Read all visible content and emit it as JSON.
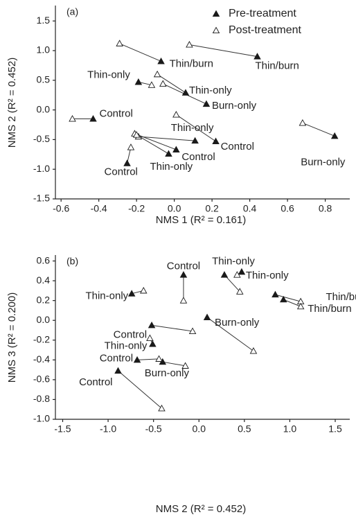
{
  "chart_data": [
    {
      "type": "scatter",
      "panel_label": "(a)",
      "legend": "upper right",
      "x_label": "NMS 1 (R² = 0.161)",
      "y_label": "NMS 2 (R² = 0.452)",
      "xlim": [
        -0.63,
        0.93
      ],
      "ylim": [
        -1.5,
        1.76
      ],
      "xticks": [
        -0.6,
        -0.4,
        -0.2,
        {
          "value": 0,
          "label": "0.0"
        },
        0.2,
        0.4,
        0.6,
        0.8
      ],
      "yticks": [
        -1.5,
        {
          "value": -1,
          "label": "-1.0"
        },
        -0.5,
        {
          "value": 0,
          "label": "0.0"
        },
        0.5,
        {
          "value": 1,
          "label": "1.0"
        },
        1.5
      ],
      "point_labels": [
        "Thin/burn",
        "Thin/burn",
        "Thin-only",
        "Thin-only",
        "Burn-only",
        "Control",
        "Thin-only",
        "Control",
        "Control",
        "Thin-only",
        "Control",
        "Burn-only"
      ],
      "series": [
        {
          "name": "Pre-treatment",
          "color": "#1a1a1a",
          "filled": true,
          "x": [
            -0.07,
            0.44,
            -0.19,
            0.06,
            0.17,
            -0.43,
            0.11,
            0.22,
            0.01,
            -0.03,
            -0.25,
            0.85
          ],
          "values": [
            0.82,
            0.9,
            0.47,
            0.29,
            0.1,
            -0.15,
            -0.52,
            -0.53,
            -0.67,
            -0.74,
            -0.9,
            -0.44
          ]
        },
        {
          "name": "Post-treatment",
          "color": "#1a1a1a",
          "filled": false,
          "x": [
            -0.29,
            0.08,
            -0.12,
            -0.09,
            -0.06,
            -0.54,
            -0.19,
            0.01,
            -0.21,
            -0.2,
            -0.23,
            0.68
          ],
          "values": [
            1.12,
            1.1,
            0.42,
            0.6,
            0.44,
            -0.15,
            -0.45,
            -0.08,
            -0.4,
            -0.42,
            -0.63,
            -0.22
          ]
        }
      ]
    },
    {
      "type": "scatter",
      "panel_label": "(b)",
      "x_label": "NMS 2 (R² = 0.452)",
      "y_label": "NMS 3 (R² = 0.200)",
      "xlim": [
        -1.58,
        1.66
      ],
      "ylim": [
        -1.0,
        0.66
      ],
      "xticks": [
        -1.5,
        {
          "value": -1,
          "label": "-1.0"
        },
        -0.5,
        {
          "value": 0,
          "label": "0.0"
        },
        0.5,
        {
          "value": 1,
          "label": "1.0"
        },
        1.5
      ],
      "yticks": [
        {
          "value": -1,
          "label": "-1.0"
        },
        -0.8,
        -0.6,
        -0.4,
        -0.2,
        {
          "value": 0,
          "label": "0.0"
        },
        0.2,
        0.4,
        0.6
      ],
      "point_labels": [
        "Thin-only",
        "Control",
        "Thin-only",
        "Thin-only",
        "Thin/burn",
        "Thin/burn",
        "Burn-only",
        "Control",
        "Thin-only",
        "Control",
        "Burn-only",
        "Control"
      ],
      "series": [
        {
          "color": "#1a1a1a",
          "filled": true,
          "x": [
            -0.74,
            -0.17,
            0.28,
            0.47,
            0.84,
            0.93,
            0.09,
            -0.52,
            -0.51,
            -0.68,
            -0.4,
            -0.89
          ],
          "values": [
            0.27,
            0.46,
            0.46,
            0.49,
            0.26,
            0.21,
            0.03,
            -0.05,
            -0.24,
            -0.4,
            -0.42,
            -0.51
          ]
        },
        {
          "color": "#1a1a1a",
          "filled": false,
          "x": [
            -0.61,
            -0.17,
            0.45,
            0.42,
            1.12,
            1.12,
            0.6,
            -0.07,
            -0.54,
            -0.44,
            -0.15,
            -0.41
          ],
          "values": [
            0.3,
            0.2,
            0.29,
            0.46,
            0.19,
            0.14,
            -0.31,
            -0.11,
            -0.18,
            -0.39,
            -0.46,
            -0.89
          ]
        }
      ]
    }
  ]
}
